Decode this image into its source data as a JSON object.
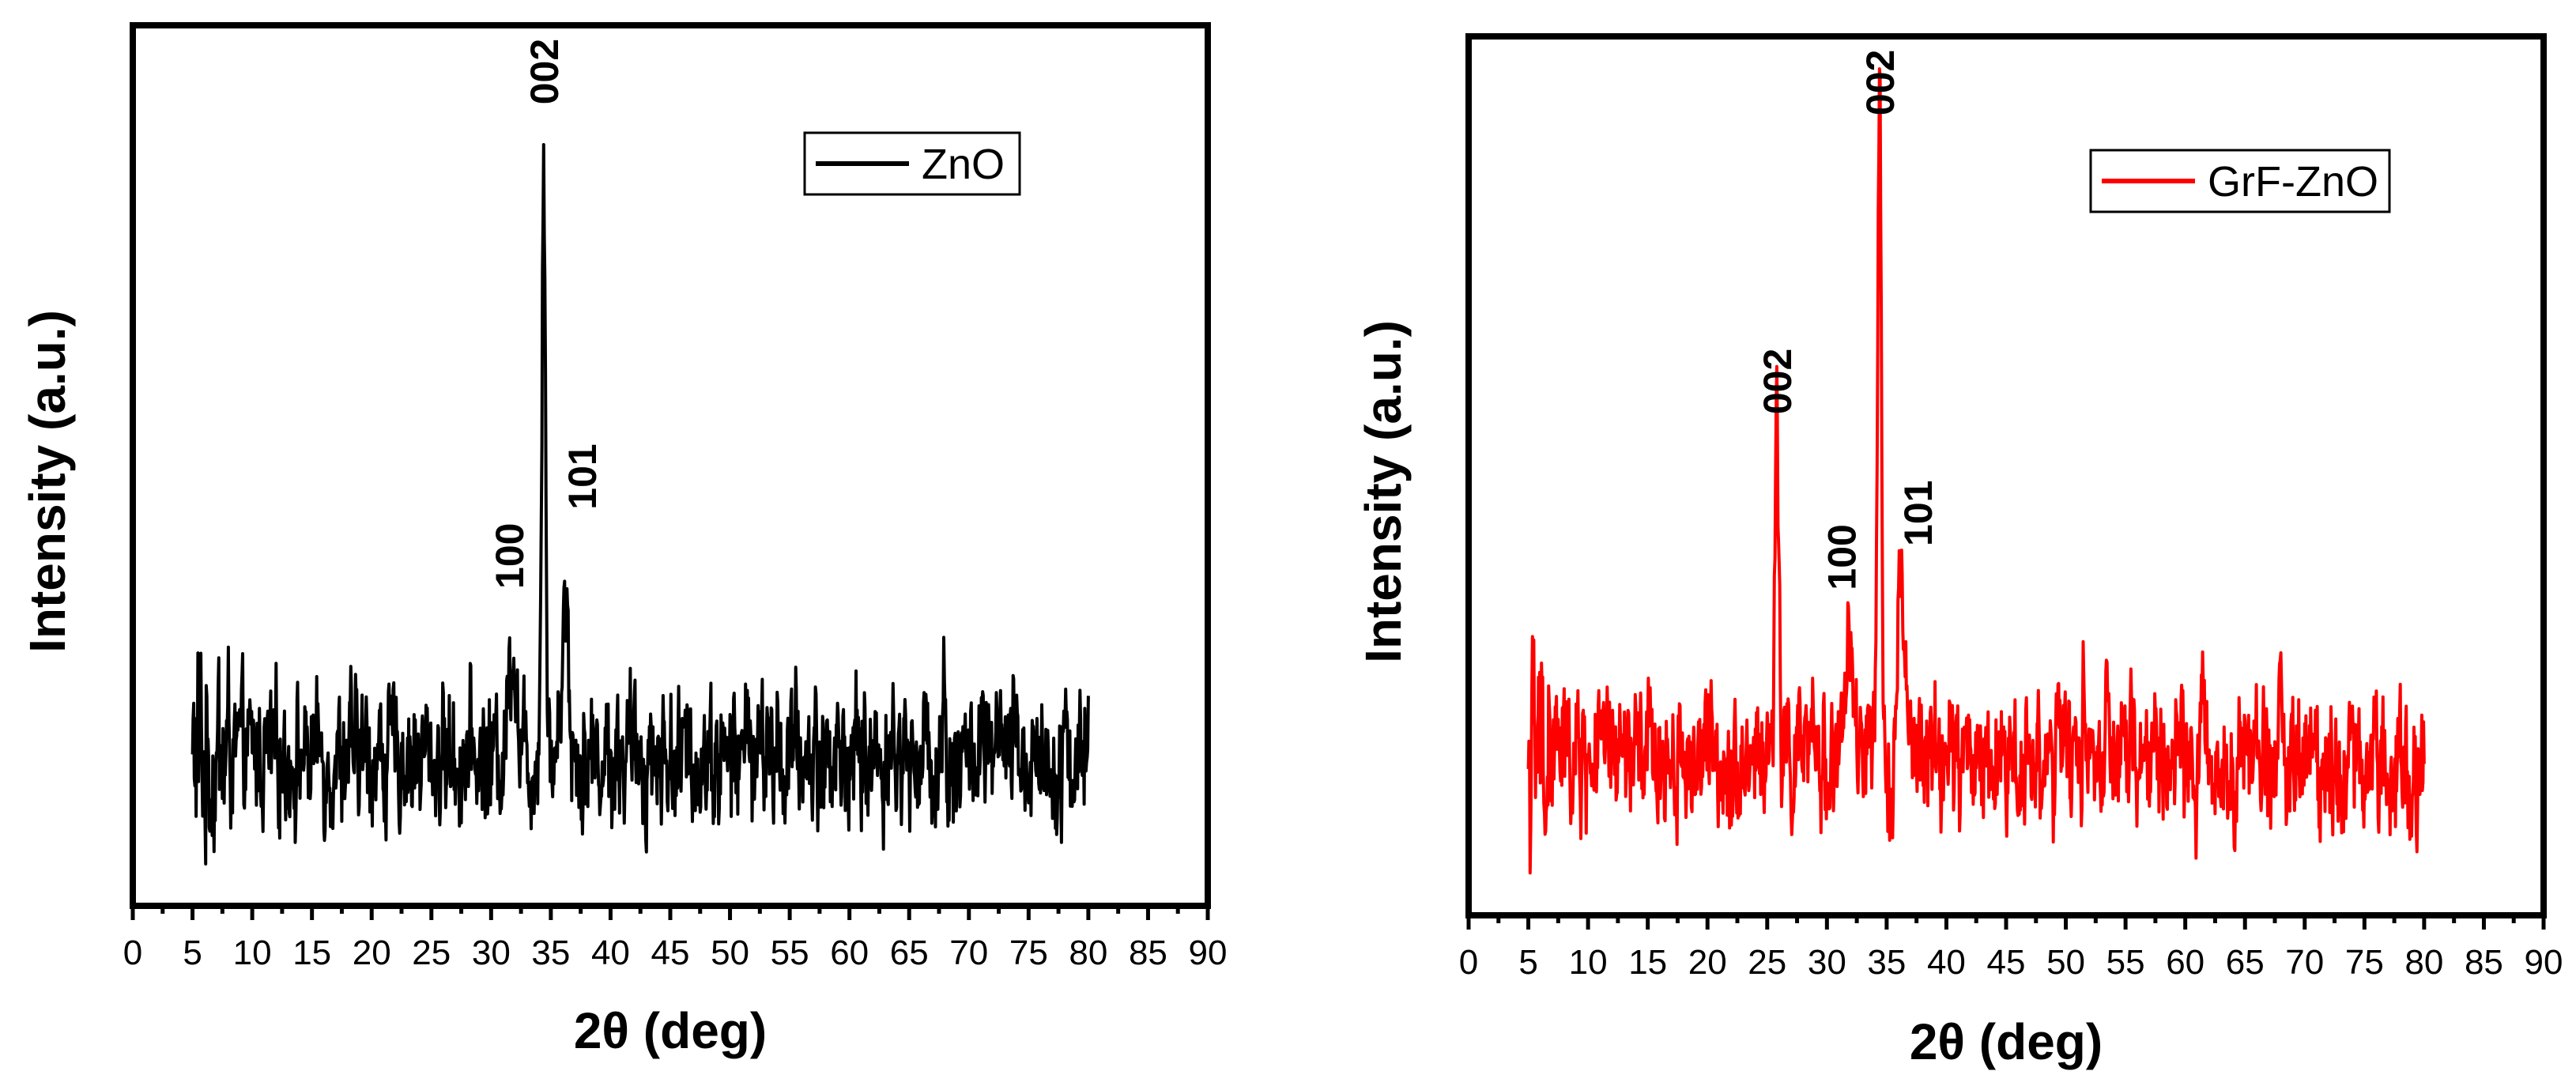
{
  "chart_data": [
    {
      "type": "line",
      "xlabel": "2θ (deg)",
      "ylabel": "Intensity (a.u.)",
      "xlim": [
        0,
        90
      ],
      "xticks": [
        0,
        5,
        10,
        15,
        20,
        25,
        30,
        35,
        40,
        45,
        50,
        55,
        60,
        65,
        70,
        75,
        80,
        85,
        90
      ],
      "ylim": [
        0,
        100
      ],
      "legend": "top-right",
      "series": [
        {
          "name": "ZnO",
          "color": "#000000",
          "x_range": [
            5,
            80
          ],
          "baseline": 17,
          "noise_amplitude": 6,
          "peaks": [
            {
              "x": 31.8,
              "height": 31,
              "width": 0.45
            },
            {
              "x": 34.4,
              "height": 87,
              "width": 0.22
            },
            {
              "x": 36.2,
              "height": 35,
              "width": 0.4
            },
            {
              "x": 51.5,
              "height": 26,
              "width": 0.12
            },
            {
              "x": 67.9,
              "height": 26,
              "width": 0.12
            }
          ]
        }
      ],
      "annotations": [
        {
          "text": "002",
          "x": 34.4,
          "y": 91
        },
        {
          "text": "100",
          "x": 31.5,
          "y": 36
        },
        {
          "text": "101",
          "x": 37.6,
          "y": 45
        }
      ]
    },
    {
      "type": "line",
      "xlabel": "2θ (deg)",
      "ylabel": "Intensity (a.u.)",
      "xlim": [
        0,
        90
      ],
      "xticks": [
        0,
        5,
        10,
        15,
        20,
        25,
        30,
        35,
        40,
        45,
        50,
        55,
        60,
        65,
        70,
        75,
        80,
        85,
        90
      ],
      "ylim": [
        0,
        100
      ],
      "legend": "top-right",
      "series": [
        {
          "name": "GrF-ZnO",
          "color": "#ff0000",
          "x_range": [
            5,
            80
          ],
          "baseline": 18,
          "noise_amplitude": 6,
          "peaks": [
            {
              "x": 25.8,
              "height": 53,
              "width": 0.25
            },
            {
              "x": 31.8,
              "height": 31,
              "width": 0.4
            },
            {
              "x": 34.4,
              "height": 88,
              "width": 0.22
            },
            {
              "x": 36.2,
              "height": 37,
              "width": 0.4
            },
            {
              "x": 51.5,
              "height": 29,
              "width": 0.12
            },
            {
              "x": 67.9,
              "height": 28,
              "width": 0.12
            }
          ]
        }
      ],
      "annotations": [
        {
          "text": "002",
          "x": 34.4,
          "y": 91
        },
        {
          "text": "002",
          "x": 25.8,
          "y": 57
        },
        {
          "text": "100",
          "x": 31.2,
          "y": 37
        },
        {
          "text": "101",
          "x": 37.6,
          "y": 42
        }
      ]
    }
  ]
}
